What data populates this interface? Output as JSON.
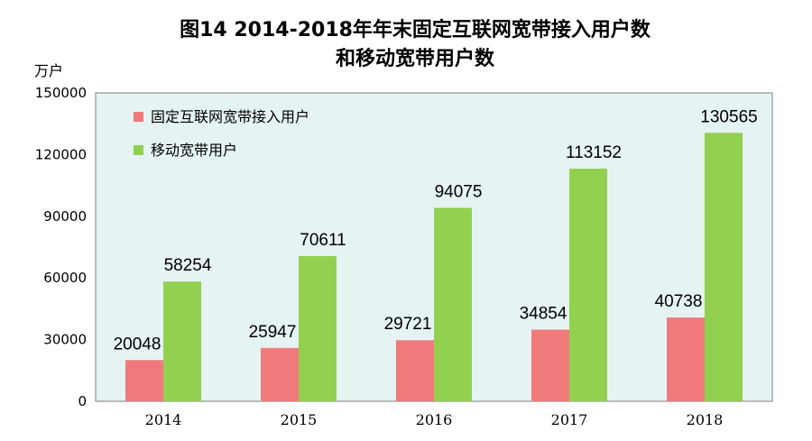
{
  "title_line1": "图14 2014-2018年年末固定互联网宽带接入用户数",
  "title_line2": "和移动宽带用户数",
  "unit": "万户",
  "colors": {
    "plot_bg": "#e6f3f3",
    "fixed": "#f07a7b",
    "mobile": "#92d050"
  },
  "chart_data": {
    "type": "bar",
    "title": "图14 2014-2018年年末固定互联网宽带接入用户数 和移动宽带用户数",
    "ylabel": "万户",
    "xlabel": "",
    "categories": [
      "2014",
      "2015",
      "2016",
      "2017",
      "2018"
    ],
    "ylim": [
      0,
      150000
    ],
    "yticks": [
      "0",
      "30000",
      "60000",
      "90000",
      "120000",
      "150000"
    ],
    "grid": false,
    "legend": "top-left",
    "series": [
      {
        "name": "固定互联网宽带接入用户",
        "values": [
          20048,
          25947,
          29721,
          34854,
          40738
        ]
      },
      {
        "name": "移动宽带用户",
        "values": [
          58254,
          70611,
          94075,
          113152,
          130565
        ]
      }
    ]
  }
}
